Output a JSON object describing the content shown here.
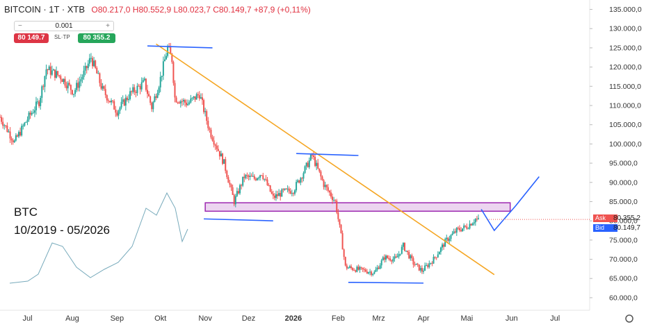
{
  "header": {
    "symbol": "BITCOIN · 1T · XTB",
    "ohlc": "O80.217,0 H80.552,9 L80.023,7 C80.149,7 +87,9 (+0,11%)"
  },
  "trade_panel": {
    "quantity": "0.001",
    "minus": "−",
    "plus": "+",
    "sell_price": "80 149.7",
    "sl_tp": "SL·TP",
    "buy_price": "80 355.2"
  },
  "overlay": {
    "line1": "BTC",
    "line2": "10/2019 - 05/2026"
  },
  "price_tags": {
    "ask_label": "Ask",
    "ask_value": "80.355,2",
    "bid_label": "Bid",
    "bid_value": "80.149,7"
  },
  "colors": {
    "up": "#26a69a",
    "down": "#ef5350",
    "trendline": "#f5a623",
    "support": "#2962ff",
    "zone_fill": "#ecd5f0",
    "zone_border": "#9c27b0",
    "ask_tag": "#ef5350",
    "bid_tag": "#2962ff"
  },
  "chart_data": {
    "type": "candlestick",
    "y_ticks": [
      "135.000,0",
      "130.000,0",
      "125.000,0",
      "120.000,0",
      "115.000,0",
      "110.000,0",
      "105.000,0",
      "100.000,0",
      "95.000,0",
      "90.000,0",
      "85.000,0",
      "80.000,0",
      "75.000,0",
      "70.000,0",
      "65.000,0",
      "60.000,0"
    ],
    "y_range": [
      58000,
      136000
    ],
    "x_labels": [
      "Jul",
      "Aug",
      "Sep",
      "Okt",
      "Nov",
      "Dez",
      "2026",
      "Feb",
      "Mrz",
      "Apr",
      "Mai",
      "Jun",
      "Jul"
    ],
    "x_range": [
      "2025-06-12",
      "2026-07-25"
    ],
    "x_label_dates": [
      "2025-07-01",
      "2025-08-01",
      "2025-09-01",
      "2025-10-01",
      "2025-11-01",
      "2025-12-01",
      "2026-01-01",
      "2026-02-01",
      "2026-03-01",
      "2026-04-01",
      "2026-05-01",
      "2026-06-01",
      "2026-07-01"
    ],
    "close_path": [
      [
        "2025-06-12",
        107000
      ],
      [
        "2025-06-22",
        100500
      ],
      [
        "2025-07-01",
        106500
      ],
      [
        "2025-07-09",
        111000
      ],
      [
        "2025-07-14",
        119500
      ],
      [
        "2025-07-24",
        117500
      ],
      [
        "2025-08-02",
        113500
      ],
      [
        "2025-08-10",
        119000
      ],
      [
        "2025-08-14",
        122500
      ],
      [
        "2025-08-22",
        114000
      ],
      [
        "2025-09-01",
        108500
      ],
      [
        "2025-09-10",
        113000
      ],
      [
        "2025-09-20",
        116000
      ],
      [
        "2025-09-25",
        109500
      ],
      [
        "2025-10-01",
        117000
      ],
      [
        "2025-10-06",
        125000
      ],
      [
        "2025-10-09",
        122000
      ],
      [
        "2025-10-11",
        112000
      ],
      [
        "2025-10-20",
        110500
      ],
      [
        "2025-10-28",
        113000
      ],
      [
        "2025-11-04",
        103500
      ],
      [
        "2025-11-14",
        95000
      ],
      [
        "2025-11-21",
        85000
      ],
      [
        "2025-11-28",
        91500
      ],
      [
        "2025-12-05",
        91000
      ],
      [
        "2025-12-10",
        92500
      ],
      [
        "2025-12-18",
        86000
      ],
      [
        "2025-12-25",
        87500
      ],
      [
        "2026-01-01",
        88000
      ],
      [
        "2026-01-07",
        92000
      ],
      [
        "2026-01-14",
        97000
      ],
      [
        "2026-01-22",
        89500
      ],
      [
        "2026-01-30",
        85000
      ],
      [
        "2026-02-03",
        76000
      ],
      [
        "2026-02-06",
        68000
      ],
      [
        "2026-02-12",
        67500
      ],
      [
        "2026-02-20",
        67000
      ],
      [
        "2026-02-26",
        66500
      ],
      [
        "2026-03-05",
        70500
      ],
      [
        "2026-03-13",
        70000
      ],
      [
        "2026-03-18",
        73500
      ],
      [
        "2026-03-25",
        69000
      ],
      [
        "2026-03-31",
        67000
      ],
      [
        "2026-04-08",
        70000
      ],
      [
        "2026-04-17",
        75000
      ],
      [
        "2026-04-24",
        77500
      ],
      [
        "2026-05-01",
        78500
      ],
      [
        "2026-05-07",
        80500
      ],
      [
        "2026-05-09",
        80150
      ]
    ],
    "annotations": {
      "resistance_trendline": [
        [
          "2025-09-28",
          126000
        ],
        [
          "2026-05-20",
          66000
        ]
      ],
      "top_levels": [
        {
          "x": [
            "2025-09-22",
            "2025-11-06"
          ],
          "y": [
            125500,
            125000
          ]
        },
        {
          "x": [
            "2026-01-03",
            "2026-02-15"
          ],
          "y": [
            97500,
            97000
          ]
        }
      ],
      "support_levels": [
        {
          "x": [
            "2025-10-31",
            "2025-12-18"
          ],
          "y": [
            80500,
            80000
          ]
        },
        {
          "x": [
            "2026-02-08",
            "2026-04-01"
          ],
          "y": [
            64000,
            63800
          ]
        }
      ],
      "zone": {
        "x": [
          "2025-11-01",
          "2026-05-31"
        ],
        "y": [
          82500,
          84700
        ]
      },
      "projection": [
        [
          "2026-05-11",
          83000
        ],
        [
          "2026-05-20",
          77500
        ],
        [
          "2026-06-04",
          84000
        ],
        [
          "2026-06-20",
          91500
        ]
      ],
      "ask_line": 80355.2
    }
  }
}
